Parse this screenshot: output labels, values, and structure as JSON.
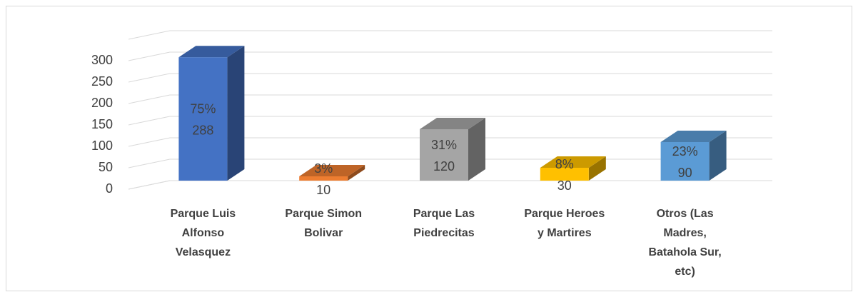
{
  "chart_data": {
    "type": "bar3d",
    "categories": [
      [
        "Parque Luis",
        "Alfonso",
        "Velasquez"
      ],
      [
        "Parque Simon",
        "Bolivar"
      ],
      [
        "Parque Las",
        "Piedrecitas"
      ],
      [
        "Parque Heroes",
        "y Martires"
      ],
      [
        "Otros (Las",
        "Madres,",
        "Batahola Sur,",
        "etc)"
      ]
    ],
    "values": [
      288,
      10,
      120,
      30,
      90
    ],
    "percent_labels": [
      "75%",
      "3%",
      "31%",
      "8%",
      "23%"
    ],
    "colors": [
      "#4472c4",
      "#ed7d31",
      "#a5a5a5",
      "#ffc000",
      "#5b9bd5"
    ],
    "ylim": [
      0,
      350
    ],
    "yticks": [
      0,
      50,
      100,
      150,
      200,
      250,
      300
    ],
    "grid": true
  }
}
